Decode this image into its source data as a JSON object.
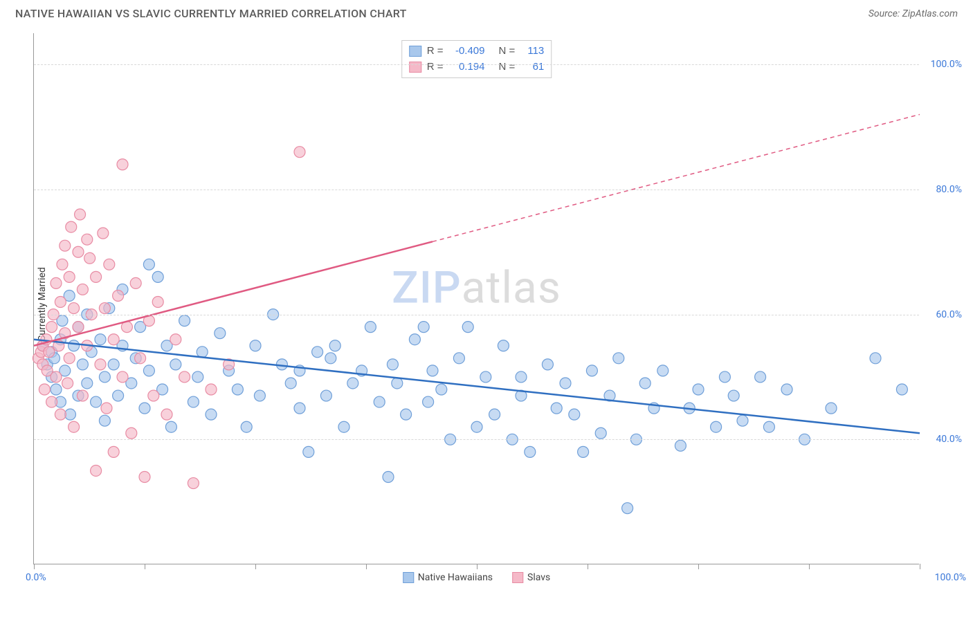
{
  "header": {
    "title": "NATIVE HAWAIIAN VS SLAVIC CURRENTLY MARRIED CORRELATION CHART",
    "source_prefix": "Source: ",
    "source": "ZipAtlas.com"
  },
  "chart": {
    "type": "scatter",
    "ylabel": "Currently Married",
    "xlim": [
      0,
      100
    ],
    "ylim": [
      20,
      105
    ],
    "ytick_positions": [
      40,
      60,
      80,
      100
    ],
    "ytick_labels": [
      "40.0%",
      "60.0%",
      "80.0%",
      "100.0%"
    ],
    "xtick_positions": [
      0,
      12.5,
      25,
      37.5,
      50,
      62.5,
      75,
      87.5,
      100
    ],
    "xlabel_min": "0.0%",
    "xlabel_max": "100.0%",
    "background_color": "#ffffff",
    "grid_color": "#d8d8d8",
    "axis_color": "#999999",
    "marker_radius": 8,
    "marker_stroke_width": 1.2,
    "series": [
      {
        "name": "Native Hawaiians",
        "fill_color": "#a9c8ec",
        "stroke_color": "#6f9fd8",
        "line_color": "#2f6fc1",
        "points": [
          [
            1,
            55
          ],
          [
            1.5,
            52
          ],
          [
            2,
            50
          ],
          [
            2,
            54
          ],
          [
            2.3,
            53
          ],
          [
            2.5,
            48
          ],
          [
            3,
            56
          ],
          [
            3,
            46
          ],
          [
            3.2,
            59
          ],
          [
            3.5,
            51
          ],
          [
            4,
            63
          ],
          [
            4.1,
            44
          ],
          [
            4.5,
            55
          ],
          [
            5,
            58
          ],
          [
            5,
            47
          ],
          [
            5.5,
            52
          ],
          [
            6,
            60
          ],
          [
            6,
            49
          ],
          [
            6.5,
            54
          ],
          [
            7,
            46
          ],
          [
            7.5,
            56
          ],
          [
            8,
            50
          ],
          [
            8,
            43
          ],
          [
            8.5,
            61
          ],
          [
            9,
            52
          ],
          [
            9.5,
            47
          ],
          [
            10,
            55
          ],
          [
            10,
            64
          ],
          [
            11,
            49
          ],
          [
            11.5,
            53
          ],
          [
            12,
            58
          ],
          [
            12.5,
            45
          ],
          [
            13,
            68
          ],
          [
            13,
            51
          ],
          [
            14,
            66
          ],
          [
            14.5,
            48
          ],
          [
            15,
            55
          ],
          [
            15.5,
            42
          ],
          [
            16,
            52
          ],
          [
            17,
            59
          ],
          [
            18,
            46
          ],
          [
            18.5,
            50
          ],
          [
            19,
            54
          ],
          [
            20,
            44
          ],
          [
            21,
            57
          ],
          [
            22,
            51
          ],
          [
            23,
            48
          ],
          [
            24,
            42
          ],
          [
            25,
            55
          ],
          [
            25.5,
            47
          ],
          [
            27,
            60
          ],
          [
            28,
            52
          ],
          [
            29,
            49
          ],
          [
            30,
            45
          ],
          [
            30,
            51
          ],
          [
            31,
            38
          ],
          [
            32,
            54
          ],
          [
            33,
            47
          ],
          [
            33.5,
            53
          ],
          [
            34,
            55
          ],
          [
            35,
            42
          ],
          [
            36,
            49
          ],
          [
            37,
            51
          ],
          [
            38,
            58
          ],
          [
            39,
            46
          ],
          [
            40,
            34
          ],
          [
            40.5,
            52
          ],
          [
            41,
            49
          ],
          [
            42,
            44
          ],
          [
            43,
            56
          ],
          [
            44,
            58
          ],
          [
            44.5,
            46
          ],
          [
            45,
            51
          ],
          [
            46,
            48
          ],
          [
            47,
            40
          ],
          [
            48,
            53
          ],
          [
            49,
            58
          ],
          [
            50,
            42
          ],
          [
            51,
            50
          ],
          [
            52,
            44
          ],
          [
            53,
            55
          ],
          [
            54,
            40
          ],
          [
            55,
            47
          ],
          [
            55,
            50
          ],
          [
            56,
            38
          ],
          [
            58,
            52
          ],
          [
            59,
            45
          ],
          [
            60,
            49
          ],
          [
            61,
            44
          ],
          [
            62,
            38
          ],
          [
            63,
            51
          ],
          [
            64,
            41
          ],
          [
            65,
            47
          ],
          [
            66,
            53
          ],
          [
            67,
            29
          ],
          [
            68,
            40
          ],
          [
            69,
            49
          ],
          [
            70,
            45
          ],
          [
            71,
            51
          ],
          [
            73,
            39
          ],
          [
            74,
            45
          ],
          [
            75,
            48
          ],
          [
            77,
            42
          ],
          [
            78,
            50
          ],
          [
            79,
            47
          ],
          [
            80,
            43
          ],
          [
            82,
            50
          ],
          [
            83,
            42
          ],
          [
            85,
            48
          ],
          [
            87,
            40
          ],
          [
            90,
            45
          ],
          [
            95,
            53
          ],
          [
            98,
            48
          ]
        ],
        "trend": {
          "x1": 0,
          "y1": 56,
          "x2": 100,
          "y2": 41,
          "dashed_from": null
        }
      },
      {
        "name": "Slavs",
        "fill_color": "#f5b9c8",
        "stroke_color": "#e88ba3",
        "line_color": "#e05a82",
        "points": [
          [
            0.5,
            53
          ],
          [
            0.8,
            54
          ],
          [
            1,
            52
          ],
          [
            1,
            55
          ],
          [
            1.2,
            48
          ],
          [
            1.4,
            56
          ],
          [
            1.5,
            51
          ],
          [
            1.7,
            54
          ],
          [
            2,
            58
          ],
          [
            2,
            46
          ],
          [
            2.2,
            60
          ],
          [
            2.5,
            50
          ],
          [
            2.5,
            65
          ],
          [
            2.8,
            55
          ],
          [
            3,
            62
          ],
          [
            3,
            44
          ],
          [
            3.2,
            68
          ],
          [
            3.5,
            57
          ],
          [
            3.5,
            71
          ],
          [
            3.8,
            49
          ],
          [
            4,
            66
          ],
          [
            4,
            53
          ],
          [
            4.2,
            74
          ],
          [
            4.5,
            61
          ],
          [
            4.5,
            42
          ],
          [
            5,
            70
          ],
          [
            5,
            58
          ],
          [
            5.2,
            76
          ],
          [
            5.5,
            64
          ],
          [
            5.5,
            47
          ],
          [
            6,
            72
          ],
          [
            6,
            55
          ],
          [
            6.3,
            69
          ],
          [
            6.5,
            60
          ],
          [
            7,
            35
          ],
          [
            7,
            66
          ],
          [
            7.5,
            52
          ],
          [
            7.8,
            73
          ],
          [
            8,
            61
          ],
          [
            8.2,
            45
          ],
          [
            8.5,
            68
          ],
          [
            9,
            56
          ],
          [
            9,
            38
          ],
          [
            9.5,
            63
          ],
          [
            10,
            84
          ],
          [
            10,
            50
          ],
          [
            10.5,
            58
          ],
          [
            11,
            41
          ],
          [
            11.5,
            65
          ],
          [
            12,
            53
          ],
          [
            12.5,
            34
          ],
          [
            13,
            59
          ],
          [
            13.5,
            47
          ],
          [
            14,
            62
          ],
          [
            15,
            44
          ],
          [
            16,
            56
          ],
          [
            17,
            50
          ],
          [
            18,
            33
          ],
          [
            20,
            48
          ],
          [
            22,
            52
          ],
          [
            30,
            86
          ]
        ],
        "trend": {
          "x1": 0,
          "y1": 55,
          "x2": 100,
          "y2": 92,
          "dashed_from": 45
        }
      }
    ],
    "stats_box": {
      "rows": [
        {
          "swatch_fill": "#a9c8ec",
          "swatch_stroke": "#6f9fd8",
          "r_label": "R =",
          "r_value": "-0.409",
          "n_label": "N =",
          "n_value": "113"
        },
        {
          "swatch_fill": "#f5b9c8",
          "swatch_stroke": "#e88ba3",
          "r_label": "R =",
          "r_value": "0.194",
          "n_label": "N =",
          "n_value": "61"
        }
      ]
    },
    "bottom_legend": [
      {
        "label": "Native Hawaiians",
        "fill": "#a9c8ec",
        "stroke": "#6f9fd8"
      },
      {
        "label": "Slavs",
        "fill": "#f5b9c8",
        "stroke": "#e88ba3"
      }
    ],
    "watermark": {
      "zip": "ZIP",
      "atlas": "atlas"
    }
  }
}
